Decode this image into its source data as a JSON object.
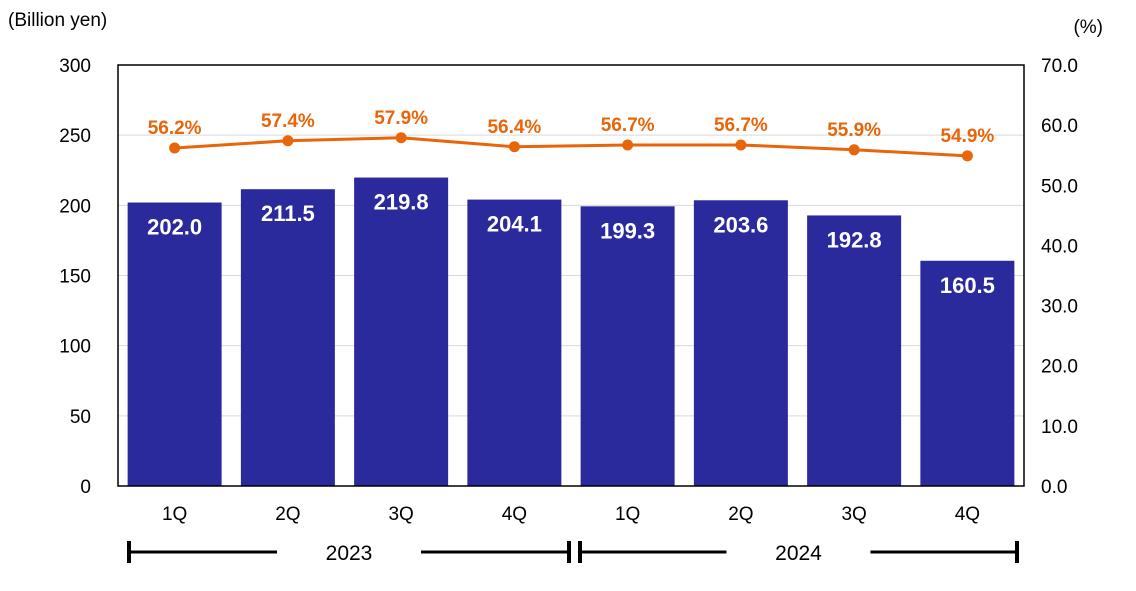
{
  "chart_data": {
    "type": "bar",
    "categories": [
      "1Q",
      "2Q",
      "3Q",
      "4Q",
      "1Q",
      "2Q",
      "3Q",
      "4Q"
    ],
    "groups": [
      {
        "label": "2023",
        "categories": [
          "1Q",
          "2Q",
          "3Q",
          "4Q"
        ]
      },
      {
        "label": "2024",
        "categories": [
          "1Q",
          "2Q",
          "3Q",
          "4Q"
        ]
      }
    ],
    "series": [
      {
        "type": "bar",
        "axis": "left",
        "values": [
          202.0,
          211.5,
          219.8,
          204.1,
          199.3,
          203.6,
          192.8,
          160.5
        ],
        "labels": [
          "202.0",
          "211.5",
          "219.8",
          "204.1",
          "199.3",
          "203.6",
          "192.8",
          "160.5"
        ],
        "color": "#2b2a9c"
      },
      {
        "type": "line",
        "axis": "right",
        "values": [
          56.2,
          57.4,
          57.9,
          56.4,
          56.7,
          56.7,
          55.9,
          54.9
        ],
        "labels": [
          "56.2%",
          "57.4%",
          "57.9%",
          "56.4%",
          "56.7%",
          "56.7%",
          "55.9%",
          "54.9%"
        ],
        "color": "#e8650a"
      }
    ],
    "yleft": {
      "unit": "(Billion yen)",
      "lim": [
        0,
        300
      ],
      "ticks": [
        "0",
        "50",
        "100",
        "150",
        "200",
        "250",
        "300"
      ]
    },
    "yright": {
      "unit": "(%)",
      "lim": [
        0,
        70
      ],
      "ticks": [
        "0.0",
        "10.0",
        "20.0",
        "30.0",
        "40.0",
        "50.0",
        "60.0",
        "70.0"
      ]
    },
    "title": "",
    "xlabel": "",
    "grid": true,
    "legend": "none"
  }
}
